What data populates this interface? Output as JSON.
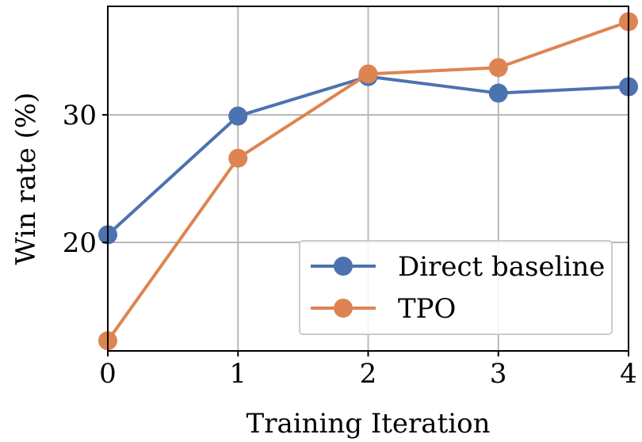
{
  "chart_data": {
    "type": "line",
    "title": "",
    "xlabel": "Training Iteration",
    "ylabel": "Win rate (%)",
    "x": [
      0,
      1,
      2,
      3,
      4
    ],
    "xlim": [
      0,
      4
    ],
    "ylim": [
      11.5,
      38.5
    ],
    "xticks": [
      "0",
      "1",
      "2",
      "3",
      "4"
    ],
    "yticks": [
      20,
      30
    ],
    "ytick_labels": [
      "20",
      "30"
    ],
    "grid": true,
    "legend_position": "lower-right",
    "series": [
      {
        "name": "Direct baseline",
        "color": "#4c72b0",
        "values": [
          20.6,
          29.9,
          33.0,
          31.7,
          32.2
        ]
      },
      {
        "name": "TPO",
        "color": "#dd8452",
        "values": [
          12.3,
          26.6,
          33.2,
          33.7,
          37.3
        ]
      }
    ]
  }
}
